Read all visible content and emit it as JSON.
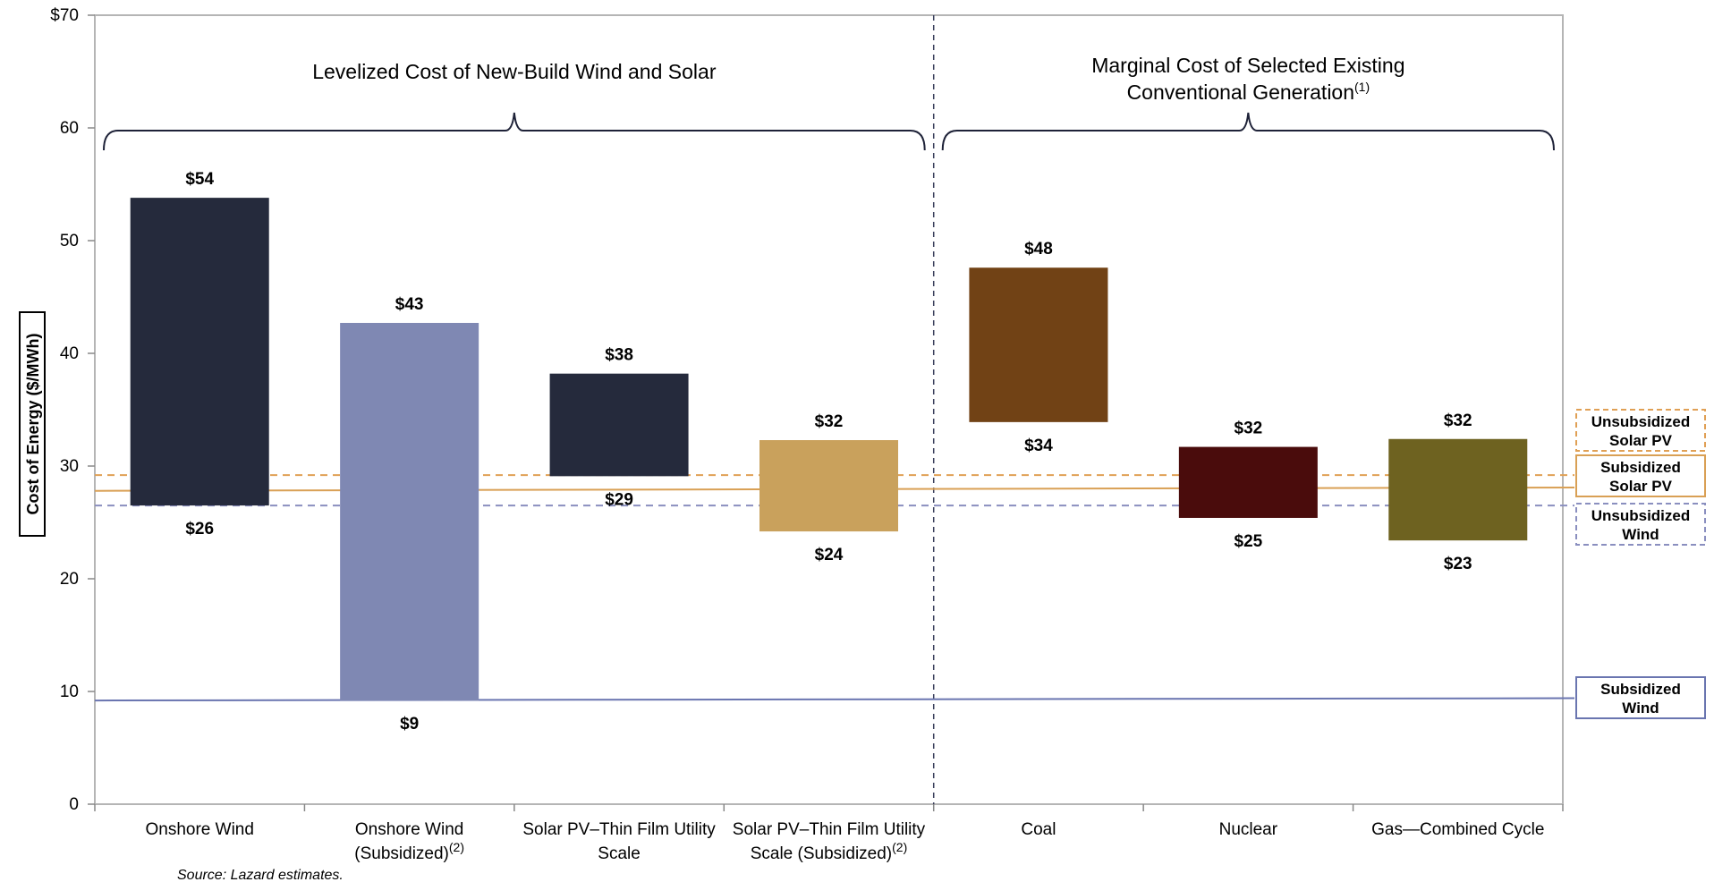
{
  "chart_data": {
    "type": "floating-bar",
    "ylabel": "Cost of Energy ($/MWh)",
    "ylim": [
      0,
      70
    ],
    "yticks": [
      "0",
      "10",
      "20",
      "30",
      "40",
      "50",
      "60",
      "$70"
    ],
    "grid": false,
    "groups": [
      {
        "title_lines": [
          "Levelized Cost of New-Build Wind and Solar"
        ],
        "title_sup": "",
        "categories": [
          0,
          1,
          2,
          3
        ]
      },
      {
        "title_lines": [
          "Marginal Cost of Selected Existing",
          "Conventional Generation"
        ],
        "title_sup": "(1)",
        "categories": [
          4,
          5,
          6
        ]
      }
    ],
    "categories": [
      {
        "lines": [
          "Onshore Wind"
        ],
        "sup": ""
      },
      {
        "lines": [
          "Onshore Wind",
          "(Subsidized)"
        ],
        "sup": "(2)"
      },
      {
        "lines": [
          "Solar PV–Thin Film Utility",
          "Scale"
        ],
        "sup": ""
      },
      {
        "lines": [
          "Solar PV–Thin Film Utility",
          "Scale (Subsidized)"
        ],
        "sup": "(2)"
      },
      {
        "lines": [
          "Coal"
        ],
        "sup": ""
      },
      {
        "lines": [
          "Nuclear"
        ],
        "sup": ""
      },
      {
        "lines": [
          "Gas—Combined Cycle"
        ],
        "sup": ""
      }
    ],
    "bars": [
      {
        "low": 26.5,
        "high": 53.8,
        "low_label": "$26",
        "high_label": "$54",
        "color": "#252a3c"
      },
      {
        "low": 9.2,
        "high": 42.7,
        "low_label": "$9",
        "high_label": "$43",
        "color": "#7f88b3"
      },
      {
        "low": 29.1,
        "high": 38.2,
        "low_label": "$29",
        "high_label": "$38",
        "color": "#252a3c"
      },
      {
        "low": 24.2,
        "high": 32.3,
        "low_label": "$24",
        "high_label": "$32",
        "color": "#c9a15c"
      },
      {
        "low": 33.9,
        "high": 47.6,
        "low_label": "$34",
        "high_label": "$48",
        "color": "#714215"
      },
      {
        "low": 25.4,
        "high": 31.7,
        "low_label": "$25",
        "high_label": "$32",
        "color": "#4a0c0c"
      },
      {
        "low": 23.4,
        "high": 32.4,
        "low_label": "$23",
        "high_label": "$32",
        "color": "#6e6220"
      }
    ],
    "reference_lines": [
      {
        "lines": [
          "Unsubsidized",
          "Solar PV"
        ],
        "y_start": 29.2,
        "y_end": 29.2,
        "color": "#e0a055",
        "dash": true
      },
      {
        "lines": [
          "Subsidized",
          "Solar PV"
        ],
        "y_start": 27.8,
        "y_end": 28.1,
        "color": "#d9a055",
        "dash": false
      },
      {
        "lines": [
          "Unsubsidized",
          "Wind"
        ],
        "y_start": 26.5,
        "y_end": 26.5,
        "color": "#8a8fbf",
        "dash": true
      },
      {
        "lines": [
          "Subsidized",
          "Wind"
        ],
        "y_start": 9.2,
        "y_end": 9.4,
        "color": "#6a75b0",
        "dash": false
      }
    ],
    "source": "Source:  Lazard estimates."
  }
}
